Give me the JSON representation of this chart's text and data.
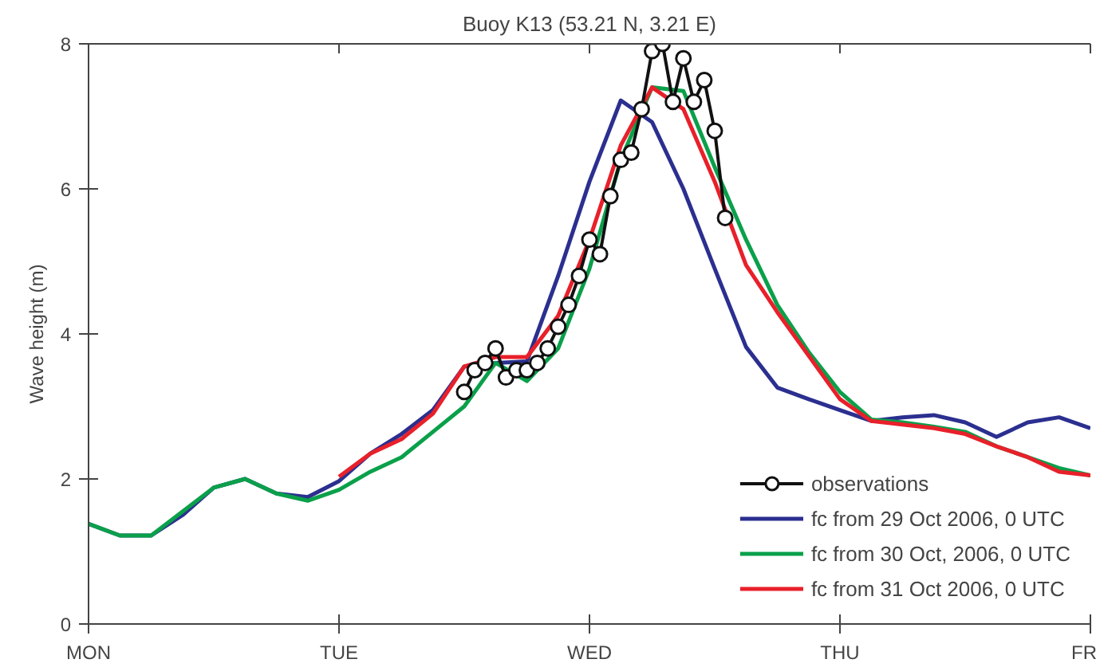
{
  "chart_data": {
    "type": "line",
    "title": "Buoy K13 (53.21 N, 3.21 E)",
    "ylabel": "Wave height (m)",
    "categories": [
      "MON",
      null,
      null,
      null,
      null,
      null,
      null,
      null,
      null,
      null,
      null,
      null,
      null,
      null,
      null,
      null,
      null,
      null,
      null,
      null,
      null,
      null,
      null,
      null,
      "TUE",
      null,
      null,
      null,
      null,
      null,
      null,
      null,
      null,
      null,
      null,
      null,
      null,
      null,
      null,
      null,
      null,
      null,
      null,
      null,
      null,
      null,
      null,
      null,
      "WED",
      null,
      null,
      null,
      null,
      null,
      null,
      null,
      null,
      null,
      null,
      null,
      null,
      null,
      null,
      null,
      null,
      null,
      null,
      null,
      null,
      null,
      null,
      null,
      "THU",
      null,
      null,
      null,
      null,
      null,
      null,
      null,
      null,
      null,
      null,
      null,
      null,
      null,
      null,
      null,
      null,
      null,
      null,
      null,
      null,
      null,
      null,
      null,
      "FR"
    ],
    "ylim": [
      0,
      8
    ],
    "yticks": [
      0,
      2,
      4,
      6,
      8
    ],
    "grid": false,
    "legend": "bottom right",
    "line_style": "solid",
    "series": [
      {
        "name": "observations",
        "color": "#111111",
        "marker": "circle",
        "values": [
          null,
          null,
          null,
          null,
          null,
          null,
          null,
          null,
          null,
          null,
          null,
          null,
          null,
          null,
          null,
          null,
          null,
          null,
          null,
          null,
          null,
          null,
          null,
          null,
          null,
          null,
          null,
          null,
          null,
          null,
          null,
          null,
          null,
          null,
          null,
          null,
          3.2,
          3.5,
          3.6,
          3.8,
          3.4,
          3.5,
          3.5,
          3.6,
          3.8,
          4.1,
          4.4,
          4.8,
          5.3,
          5.1,
          5.9,
          6.4,
          6.5,
          7.1,
          7.9,
          8.0,
          7.2,
          7.8,
          7.2,
          7.5,
          6.8,
          5.6,
          null,
          null,
          null,
          null,
          null,
          null,
          null,
          null,
          null,
          null,
          null,
          null,
          null,
          null,
          null,
          null,
          null,
          null,
          null,
          null,
          null,
          null,
          null,
          null,
          null,
          null,
          null,
          null,
          null,
          null,
          null,
          null,
          null,
          null,
          null
        ]
      },
      {
        "name": "fc from 29 Oct 2006, 0 UTC",
        "color": "#2b2f8f",
        "marker": "none",
        "values": [
          1.38,
          null,
          null,
          1.22,
          null,
          null,
          1.22,
          null,
          null,
          1.5,
          null,
          null,
          1.88,
          null,
          null,
          2.0,
          null,
          null,
          1.8,
          null,
          null,
          1.75,
          null,
          null,
          1.97,
          null,
          null,
          2.35,
          null,
          null,
          2.62,
          null,
          null,
          2.95,
          null,
          null,
          3.55,
          null,
          null,
          3.6,
          null,
          null,
          3.62,
          null,
          null,
          4.8,
          null,
          null,
          6.1,
          null,
          null,
          7.22,
          null,
          null,
          6.92,
          null,
          null,
          6.0,
          null,
          null,
          4.9,
          null,
          null,
          3.82,
          null,
          null,
          3.26,
          null,
          null,
          3.1,
          null,
          null,
          2.95,
          null,
          null,
          2.8,
          null,
          null,
          2.85,
          null,
          null,
          2.88,
          null,
          null,
          2.78,
          null,
          null,
          2.58,
          null,
          null,
          2.78,
          null,
          null,
          2.85,
          null,
          null,
          2.7
        ]
      },
      {
        "name": "fc from 30 Oct, 2006, 0 UTC",
        "color": "#0aa04a",
        "marker": "none",
        "values": [
          1.38,
          null,
          null,
          1.22,
          null,
          null,
          1.22,
          null,
          null,
          1.55,
          null,
          null,
          1.88,
          null,
          null,
          2.0,
          null,
          null,
          1.8,
          null,
          null,
          1.7,
          null,
          null,
          1.85,
          null,
          null,
          2.1,
          null,
          null,
          2.3,
          null,
          null,
          2.65,
          null,
          null,
          3.0,
          null,
          null,
          3.6,
          null,
          null,
          3.35,
          null,
          null,
          3.8,
          null,
          null,
          4.9,
          null,
          null,
          6.4,
          null,
          null,
          7.4,
          null,
          null,
          7.35,
          null,
          null,
          6.3,
          null,
          null,
          5.3,
          null,
          null,
          4.4,
          null,
          null,
          3.75,
          null,
          null,
          3.2,
          null,
          null,
          2.82,
          null,
          null,
          2.78,
          null,
          null,
          2.72,
          null,
          null,
          2.65,
          null,
          null,
          2.45,
          null,
          null,
          2.3,
          null,
          null,
          2.15,
          null,
          null,
          2.05
        ]
      },
      {
        "name": "fc from 31 Oct 2006, 0 UTC",
        "color": "#e8202a",
        "marker": "none",
        "values": [
          null,
          null,
          null,
          null,
          null,
          null,
          null,
          null,
          null,
          null,
          null,
          null,
          null,
          null,
          null,
          null,
          null,
          null,
          null,
          null,
          null,
          null,
          null,
          null,
          2.03,
          null,
          null,
          2.35,
          null,
          null,
          2.55,
          null,
          null,
          2.9,
          null,
          null,
          3.55,
          null,
          null,
          3.68,
          null,
          null,
          3.68,
          null,
          null,
          4.25,
          null,
          null,
          5.3,
          null,
          null,
          6.6,
          null,
          null,
          7.4,
          null,
          null,
          7.1,
          null,
          null,
          6.1,
          null,
          null,
          4.95,
          null,
          null,
          4.3,
          null,
          null,
          3.7,
          null,
          null,
          3.1,
          null,
          null,
          2.8,
          null,
          null,
          2.75,
          null,
          null,
          2.7,
          null,
          null,
          2.62,
          null,
          null,
          2.45,
          null,
          null,
          2.3,
          null,
          null,
          2.1,
          null,
          null,
          2.05
        ]
      }
    ]
  }
}
